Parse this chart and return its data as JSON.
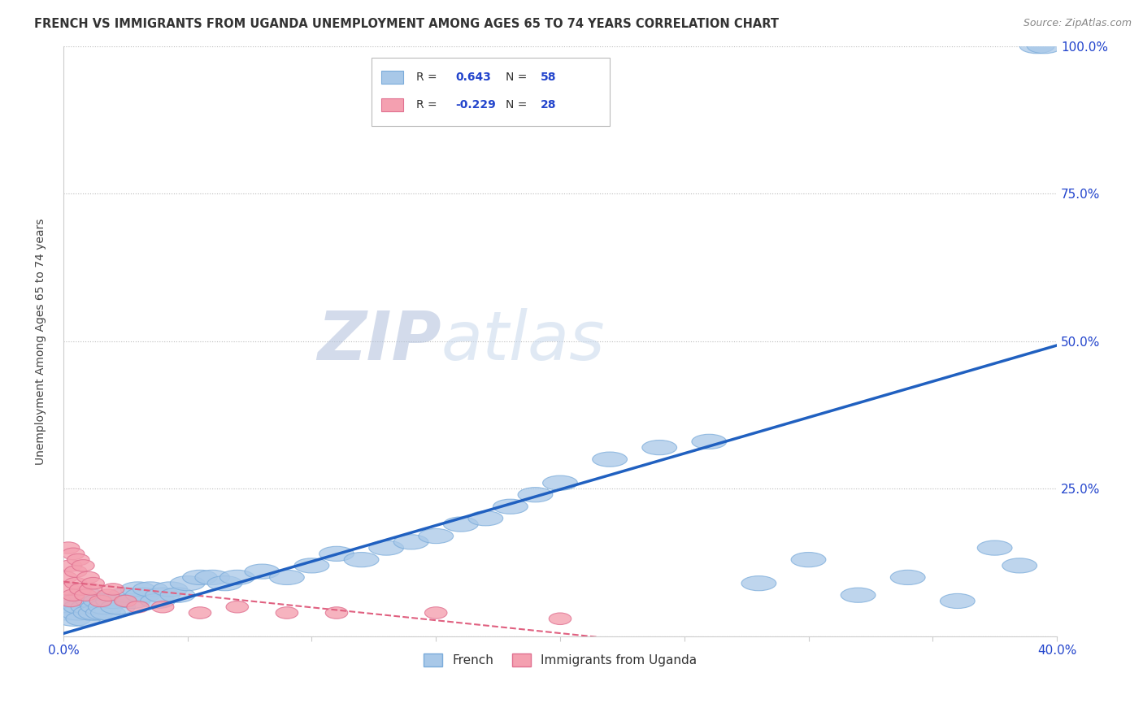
{
  "title": "FRENCH VS IMMIGRANTS FROM UGANDA UNEMPLOYMENT AMONG AGES 65 TO 74 YEARS CORRELATION CHART",
  "source": "Source: ZipAtlas.com",
  "ylabel": "Unemployment Among Ages 65 to 74 years",
  "xlim": [
    0.0,
    0.4
  ],
  "ylim": [
    0.0,
    1.0
  ],
  "xtick_positions": [
    0.0,
    0.05,
    0.1,
    0.15,
    0.2,
    0.25,
    0.3,
    0.35,
    0.4
  ],
  "xticklabels": [
    "0.0%",
    "",
    "",
    "",
    "",
    "",
    "",
    "",
    "40.0%"
  ],
  "ytick_values": [
    0.0,
    0.25,
    0.5,
    0.75,
    1.0
  ],
  "ytick_labels": [
    "",
    "25.0%",
    "50.0%",
    "75.0%",
    "100.0%"
  ],
  "legend_french": "French",
  "legend_uganda": "Immigrants from Uganda",
  "R_french": "0.643",
  "N_french": "58",
  "R_uganda": "-0.229",
  "N_uganda": "28",
  "blue_color": "#A8C8E8",
  "blue_edge_color": "#7AABDA",
  "pink_color": "#F4A0B0",
  "pink_edge_color": "#E07090",
  "blue_line_color": "#2060C0",
  "pink_line_color": "#E06080",
  "watermark_zip": "ZIP",
  "watermark_atlas": "atlas",
  "watermark_color": "#C8D4E8",
  "french_x": [
    0.002,
    0.003,
    0.004,
    0.005,
    0.006,
    0.007,
    0.008,
    0.009,
    0.01,
    0.011,
    0.012,
    0.013,
    0.014,
    0.015,
    0.016,
    0.017,
    0.018,
    0.02,
    0.022,
    0.025,
    0.028,
    0.03,
    0.032,
    0.035,
    0.038,
    0.04,
    0.043,
    0.046,
    0.05,
    0.055,
    0.06,
    0.065,
    0.07,
    0.08,
    0.09,
    0.1,
    0.11,
    0.12,
    0.13,
    0.14,
    0.15,
    0.16,
    0.17,
    0.18,
    0.19,
    0.2,
    0.22,
    0.24,
    0.26,
    0.28,
    0.3,
    0.32,
    0.34,
    0.36,
    0.375,
    0.385,
    0.392,
    0.395
  ],
  "french_y": [
    0.04,
    0.05,
    0.03,
    0.06,
    0.04,
    0.05,
    0.03,
    0.07,
    0.05,
    0.04,
    0.06,
    0.04,
    0.05,
    0.06,
    0.04,
    0.05,
    0.04,
    0.06,
    0.05,
    0.07,
    0.06,
    0.08,
    0.07,
    0.08,
    0.06,
    0.07,
    0.08,
    0.07,
    0.09,
    0.1,
    0.1,
    0.09,
    0.1,
    0.11,
    0.1,
    0.12,
    0.14,
    0.13,
    0.15,
    0.16,
    0.17,
    0.19,
    0.2,
    0.22,
    0.24,
    0.26,
    0.3,
    0.32,
    0.33,
    0.09,
    0.13,
    0.07,
    0.1,
    0.06,
    0.15,
    0.12,
    1.0,
    1.0
  ],
  "uganda_x": [
    0.001,
    0.002,
    0.002,
    0.003,
    0.003,
    0.004,
    0.004,
    0.005,
    0.005,
    0.006,
    0.007,
    0.008,
    0.009,
    0.01,
    0.011,
    0.012,
    0.015,
    0.018,
    0.02,
    0.025,
    0.03,
    0.04,
    0.055,
    0.07,
    0.09,
    0.11,
    0.15,
    0.2
  ],
  "uganda_y": [
    0.1,
    0.15,
    0.08,
    0.12,
    0.06,
    0.14,
    0.07,
    0.11,
    0.09,
    0.13,
    0.08,
    0.12,
    0.07,
    0.1,
    0.08,
    0.09,
    0.06,
    0.07,
    0.08,
    0.06,
    0.05,
    0.05,
    0.04,
    0.05,
    0.04,
    0.04,
    0.04,
    0.03
  ]
}
